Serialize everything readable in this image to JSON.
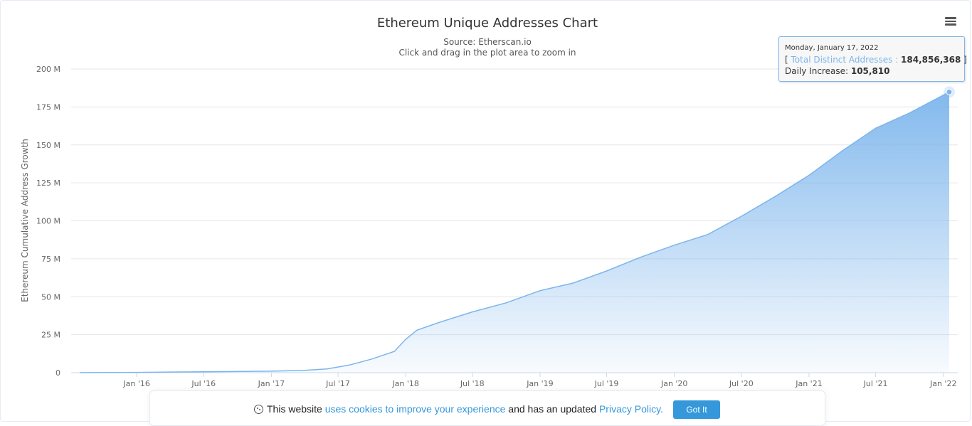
{
  "chart_data": {
    "type": "area",
    "title": "Ethereum Unique Addresses Chart",
    "subtitle_source": "Source: Etherscan.io",
    "subtitle_hint": "Click and drag in the plot area to zoom in",
    "ylabel": "Ethereum Cumulative Address Growth",
    "xlabel": "",
    "ylim": [
      0,
      200
    ],
    "y_unit": "M",
    "y_ticks": [
      "0",
      "25 M",
      "50 M",
      "75 M",
      "100 M",
      "125 M",
      "150 M",
      "175 M",
      "200 M"
    ],
    "x_ticks": [
      {
        "label": "Jan '16",
        "date": "2016-01-01"
      },
      {
        "label": "Jul '16",
        "date": "2016-07-01"
      },
      {
        "label": "Jan '17",
        "date": "2017-01-01"
      },
      {
        "label": "Jul '17",
        "date": "2017-07-01"
      },
      {
        "label": "Jan '18",
        "date": "2018-01-01"
      },
      {
        "label": "Jul '18",
        "date": "2018-07-01"
      },
      {
        "label": "Jan '19",
        "date": "2019-01-01"
      },
      {
        "label": "Jul '19",
        "date": "2019-07-01"
      },
      {
        "label": "Jan '20",
        "date": "2020-01-01"
      },
      {
        "label": "Jul '20",
        "date": "2020-07-01"
      },
      {
        "label": "Jan '21",
        "date": "2021-01-01"
      },
      {
        "label": "Jul '21",
        "date": "2021-07-01"
      },
      {
        "label": "Jan '22",
        "date": "2022-01-01"
      }
    ],
    "x_range": [
      "2015-07-30",
      "2022-01-17"
    ],
    "grid": true,
    "series": [
      {
        "name": "Total Distinct Addresses",
        "color": "#7cb5ec",
        "x": [
          "2015-07-30",
          "2016-01-01",
          "2016-07-01",
          "2017-01-01",
          "2017-04-01",
          "2017-06-01",
          "2017-08-01",
          "2017-10-01",
          "2017-12-01",
          "2018-01-01",
          "2018-02-01",
          "2018-04-01",
          "2018-07-01",
          "2018-10-01",
          "2019-01-01",
          "2019-04-01",
          "2019-07-01",
          "2019-10-01",
          "2020-01-01",
          "2020-04-01",
          "2020-07-01",
          "2020-10-01",
          "2021-01-01",
          "2021-04-01",
          "2021-07-01",
          "2021-10-01",
          "2022-01-17"
        ],
        "values": [
          0.01,
          0.2,
          0.6,
          1.0,
          1.5,
          2.5,
          5.0,
          9.0,
          14.0,
          22.0,
          28.0,
          33.0,
          40.0,
          46.0,
          54.0,
          59.0,
          67.0,
          76.0,
          84.0,
          91.0,
          103.0,
          116.0,
          130.0,
          146.0,
          161.0,
          171.0,
          184.86
        ]
      }
    ],
    "tooltip": {
      "date": "Monday, January 17, 2022",
      "series_label": "Total Distinct Addresses",
      "value": "184,856,368",
      "increase_label": "Daily Increase:",
      "increase_value": "105,810"
    }
  },
  "cookie_banner": {
    "text_1": "This website",
    "link_1": "uses cookies to improve your experience",
    "text_2": "and has an updated",
    "link_2": "Privacy Policy.",
    "button_label": "Got It"
  },
  "icons": {
    "menu": "hamburger-menu-icon",
    "cookie": "cookie-icon"
  }
}
